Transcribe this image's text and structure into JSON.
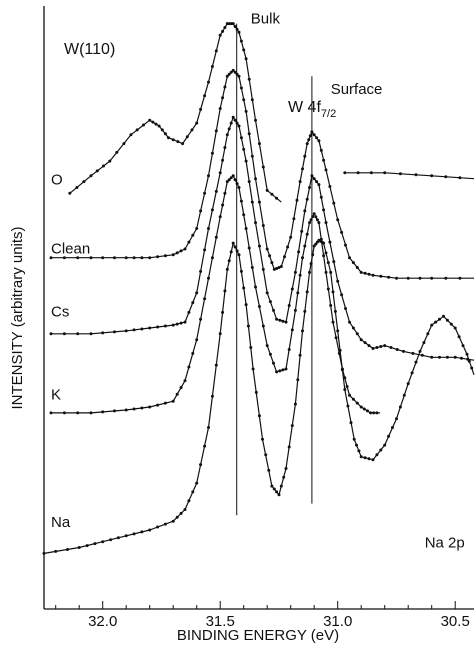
{
  "chart_data": {
    "type": "line",
    "sample_label": "W(110)",
    "core_level": {
      "base": "W 4f",
      "subscript": "7/2"
    },
    "xlabel": "BINDING ENERGY (eV)",
    "ylabel": "INTENSITY (arbitrary units)",
    "x_reversed": true,
    "xlim": [
      32.25,
      30.42
    ],
    "ylim": [
      -1.0,
      1.06
    ],
    "xticks": [
      32.0,
      31.5,
      31.0,
      30.5
    ],
    "xtick_labels": [
      "32.0",
      "31.5",
      "31.0",
      "30.5"
    ],
    "grid": false,
    "legend": "none",
    "annotations": [
      {
        "text": "Bulk",
        "x": 31.37,
        "y": 1.0
      },
      {
        "text": "Surface",
        "x": 31.03,
        "y": 0.76
      },
      {
        "text": "Na 2p",
        "x": 30.63,
        "y": -0.79
      }
    ],
    "reference_lines": [
      {
        "x": 31.43,
        "y_from": -0.68,
        "y_to": 1.0
      },
      {
        "x": 31.11,
        "y_from": -0.64,
        "y_to": 0.82
      }
    ],
    "series": [
      {
        "name": "O",
        "label_at": [
          32.22,
          0.45
        ],
        "x": [
          32.14,
          32.05,
          31.97,
          31.88,
          31.8,
          31.76,
          31.72,
          31.66,
          31.6,
          31.55,
          31.5,
          31.47,
          31.445,
          31.42,
          31.39,
          31.35,
          31.3,
          31.24
        ],
        "y": [
          0.42,
          0.48,
          0.53,
          0.62,
          0.67,
          0.65,
          0.61,
          0.59,
          0.66,
          0.8,
          0.96,
          1.0,
          1.0,
          0.97,
          0.88,
          0.67,
          0.43,
          0.39
        ],
        "x2": [
          30.97,
          30.8,
          30.6,
          30.42
        ],
        "y2": [
          0.49,
          0.49,
          0.48,
          0.47
        ]
      },
      {
        "name": "Clean",
        "label_at": [
          32.22,
          0.215
        ],
        "x": [
          32.22,
          32.05,
          31.9,
          31.8,
          31.7,
          31.65,
          31.6,
          31.55,
          31.5,
          31.47,
          31.445,
          31.42,
          31.39,
          31.35,
          31.3,
          31.27,
          31.24,
          31.2,
          31.16,
          31.13,
          31.11,
          31.08,
          31.05,
          31.0,
          30.95,
          30.9,
          30.85,
          30.75,
          30.6,
          30.42
        ],
        "y": [
          0.2,
          0.2,
          0.2,
          0.2,
          0.21,
          0.23,
          0.3,
          0.48,
          0.71,
          0.82,
          0.84,
          0.82,
          0.7,
          0.47,
          0.23,
          0.16,
          0.17,
          0.27,
          0.46,
          0.59,
          0.63,
          0.6,
          0.5,
          0.33,
          0.2,
          0.15,
          0.14,
          0.13,
          0.13,
          0.13
        ]
      },
      {
        "name": "Cs",
        "label_at": [
          32.22,
          0.0
        ],
        "x": [
          32.22,
          32.05,
          31.9,
          31.8,
          31.7,
          31.65,
          31.6,
          31.55,
          31.5,
          31.47,
          31.445,
          31.42,
          31.39,
          31.35,
          31.3,
          31.26,
          31.22,
          31.18,
          31.14,
          31.11,
          31.08,
          31.05,
          31.0,
          30.95,
          30.9,
          30.85,
          30.8,
          30.72,
          30.6,
          30.5,
          30.42
        ],
        "y": [
          -0.06,
          -0.06,
          -0.05,
          -0.04,
          -0.03,
          -0.02,
          0.08,
          0.3,
          0.49,
          0.62,
          0.68,
          0.65,
          0.53,
          0.32,
          0.08,
          -0.01,
          -0.02,
          0.15,
          0.36,
          0.48,
          0.45,
          0.32,
          0.12,
          -0.02,
          -0.08,
          -0.11,
          -0.1,
          -0.12,
          -0.14,
          -0.14,
          -0.15
        ]
      },
      {
        "name": "K",
        "label_at": [
          32.22,
          -0.285
        ],
        "x": [
          32.22,
          32.05,
          31.9,
          31.8,
          31.7,
          31.65,
          31.6,
          31.55,
          31.5,
          31.47,
          31.445,
          31.42,
          31.39,
          31.35,
          31.3,
          31.26,
          31.22,
          31.18,
          31.15,
          31.12,
          31.1,
          31.08,
          31.05,
          31.02,
          30.98,
          30.95,
          30.9,
          30.86,
          30.82
        ],
        "y": [
          -0.33,
          -0.33,
          -0.32,
          -0.31,
          -0.29,
          -0.22,
          -0.08,
          0.13,
          0.34,
          0.46,
          0.48,
          0.44,
          0.3,
          0.1,
          -0.1,
          -0.19,
          -0.18,
          0.02,
          0.2,
          0.32,
          0.35,
          0.32,
          0.15,
          -0.02,
          -0.18,
          -0.27,
          -0.31,
          -0.33,
          -0.33
        ]
      },
      {
        "name": "Na",
        "label_at": [
          32.22,
          -0.72
        ],
        "x": [
          32.25,
          32.1,
          32.0,
          31.9,
          31.8,
          31.7,
          31.65,
          31.6,
          31.55,
          31.5,
          31.47,
          31.445,
          31.42,
          31.39,
          31.36,
          31.32,
          31.28,
          31.25,
          31.22,
          31.18,
          31.15,
          31.12,
          31.1,
          31.08,
          31.06,
          31.03,
          31.0,
          30.97,
          30.93,
          30.9,
          30.85,
          30.8,
          30.75,
          30.7,
          30.65,
          30.6,
          30.55,
          30.5,
          30.45,
          30.42
        ],
        "y": [
          -0.81,
          -0.79,
          -0.77,
          -0.75,
          -0.73,
          -0.7,
          -0.66,
          -0.57,
          -0.38,
          -0.06,
          0.16,
          0.25,
          0.21,
          0.04,
          -0.18,
          -0.42,
          -0.58,
          -0.61,
          -0.52,
          -0.3,
          -0.05,
          0.15,
          0.24,
          0.26,
          0.25,
          0.15,
          -0.05,
          -0.25,
          -0.42,
          -0.48,
          -0.49,
          -0.44,
          -0.35,
          -0.23,
          -0.12,
          -0.03,
          0.0,
          -0.04,
          -0.13,
          -0.2
        ]
      }
    ]
  }
}
